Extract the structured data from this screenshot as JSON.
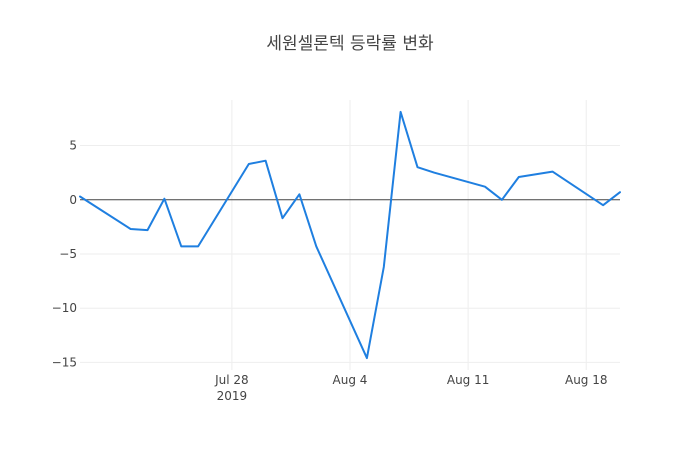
{
  "chart_data": {
    "type": "line",
    "title": "세원셀론텍 등락률 변화",
    "xlabel": "",
    "ylabel": "",
    "x_range": [
      "2019-07-19",
      "2019-08-20"
    ],
    "ylim": [
      -15.7,
      9.2
    ],
    "grid": true,
    "zero_line": true,
    "line_color": "#1f7fe0",
    "x_ticks": [
      {
        "date": "2019-07-28",
        "label": "Jul 28",
        "sublabel": "2019"
      },
      {
        "date": "2019-08-04",
        "label": "Aug 4",
        "sublabel": ""
      },
      {
        "date": "2019-08-11",
        "label": "Aug 11",
        "sublabel": ""
      },
      {
        "date": "2019-08-18",
        "label": "Aug 18",
        "sublabel": ""
      }
    ],
    "y_ticks": [
      {
        "value": 5,
        "label": "5"
      },
      {
        "value": 0,
        "label": "0"
      },
      {
        "value": -5,
        "label": "−5"
      },
      {
        "value": -10,
        "label": "−10"
      },
      {
        "value": -15,
        "label": "−15"
      }
    ],
    "series": [
      {
        "x": [
          "2019-07-19",
          "2019-07-22",
          "2019-07-23",
          "2019-07-24",
          "2019-07-25",
          "2019-07-26",
          "2019-07-29",
          "2019-07-30",
          "2019-07-31",
          "2019-08-01",
          "2019-08-02",
          "2019-08-05",
          "2019-08-06",
          "2019-08-07",
          "2019-08-08",
          "2019-08-09",
          "2019-08-12",
          "2019-08-13",
          "2019-08-14",
          "2019-08-16",
          "2019-08-19",
          "2019-08-20"
        ],
        "y": [
          0.3,
          -2.7,
          -2.8,
          0.1,
          -4.3,
          -4.3,
          3.3,
          3.6,
          -1.7,
          0.5,
          -4.3,
          -14.6,
          -6.2,
          8.1,
          3.0,
          2.5,
          1.2,
          0.0,
          2.1,
          2.6,
          -0.5,
          0.7
        ]
      }
    ]
  }
}
